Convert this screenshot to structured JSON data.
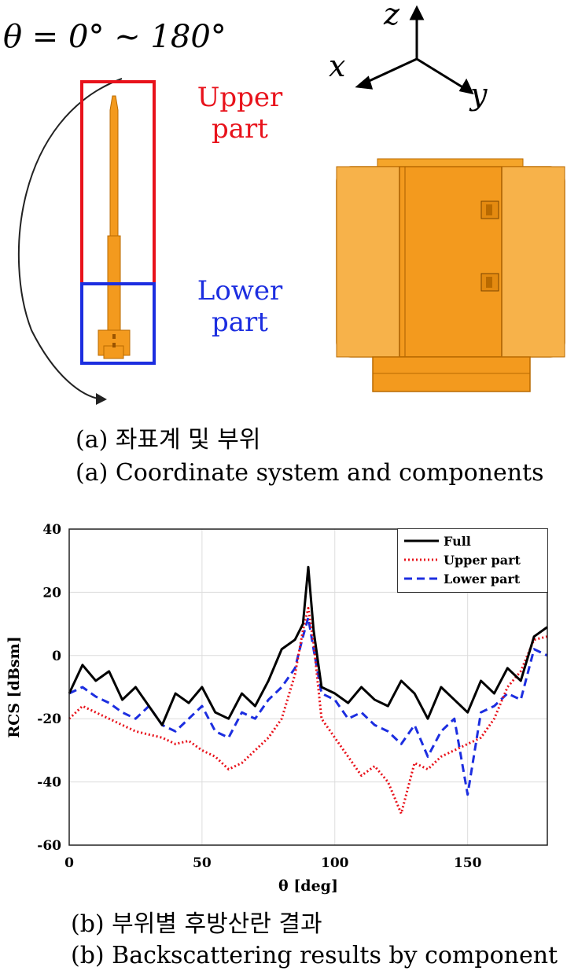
{
  "figure_a": {
    "angle_label": "θ = 0° ~ 180°",
    "upper_label_line1": "Upper",
    "upper_label_line2": "part",
    "lower_label_line1": "Lower",
    "lower_label_line2": "part",
    "axis_x": "x",
    "axis_y": "y",
    "axis_z": "z",
    "caption_kr": "(a)  좌표계 및 부위",
    "caption_en": "(a)  Coordinate system and components",
    "colors": {
      "upper_box": "#e8121b",
      "lower_box": "#1c2ee0",
      "body": "#f39a1e"
    }
  },
  "figure_b": {
    "caption_kr": "(b)  부위별 후방산란 결과",
    "caption_en": "(b)  Backscattering results by component"
  },
  "chart_data": {
    "type": "line",
    "xlabel": "θ [deg]",
    "ylabel": "RCS [dBsm]",
    "xlim": [
      0,
      180
    ],
    "ylim": [
      -60,
      40
    ],
    "x_ticks": [
      "0",
      "50",
      "100",
      "150"
    ],
    "y_ticks": [
      "-60",
      "-40",
      "-20",
      "0",
      "20",
      "40"
    ],
    "grid": true,
    "legend_position": "top-right",
    "x": [
      0,
      5,
      10,
      15,
      20,
      25,
      30,
      35,
      40,
      45,
      50,
      55,
      60,
      65,
      70,
      75,
      80,
      85,
      88,
      90,
      92,
      95,
      100,
      105,
      110,
      115,
      120,
      125,
      130,
      135,
      140,
      145,
      150,
      155,
      160,
      165,
      170,
      175,
      180
    ],
    "series": [
      {
        "name": "Full",
        "color": "#000000",
        "style": "solid",
        "values": [
          -12,
          -3,
          -8,
          -5,
          -14,
          -10,
          -16,
          -22,
          -12,
          -15,
          -10,
          -18,
          -20,
          -12,
          -16,
          -8,
          2,
          5,
          10,
          28,
          8,
          -10,
          -12,
          -15,
          -10,
          -14,
          -16,
          -8,
          -12,
          -20,
          -10,
          -14,
          -18,
          -8,
          -12,
          -4,
          -8,
          6,
          9
        ]
      },
      {
        "name": "Upper part",
        "color": "#e8121b",
        "style": "dotted",
        "values": [
          -20,
          -16,
          -18,
          -20,
          -22,
          -24,
          -25,
          -26,
          -28,
          -27,
          -30,
          -32,
          -36,
          -34,
          -30,
          -26,
          -20,
          -6,
          8,
          15,
          4,
          -20,
          -26,
          -32,
          -38,
          -35,
          -40,
          -50,
          -34,
          -36,
          -32,
          -30,
          -28,
          -26,
          -20,
          -10,
          -5,
          5,
          6
        ]
      },
      {
        "name": "Lower part",
        "color": "#1c2ee0",
        "style": "dashed",
        "values": [
          -12,
          -10,
          -13,
          -15,
          -18,
          -20,
          -16,
          -22,
          -24,
          -20,
          -16,
          -24,
          -26,
          -18,
          -20,
          -14,
          -10,
          -4,
          6,
          12,
          2,
          -12,
          -14,
          -20,
          -18,
          -22,
          -24,
          -28,
          -22,
          -32,
          -24,
          -20,
          -44,
          -18,
          -16,
          -12,
          -14,
          2,
          0
        ]
      }
    ]
  }
}
